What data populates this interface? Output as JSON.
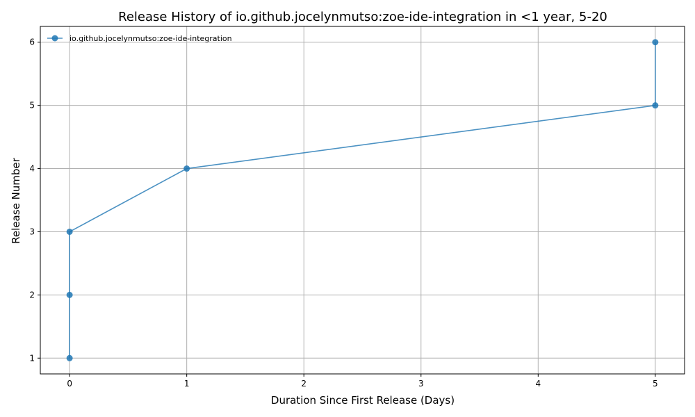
{
  "chart_data": {
    "type": "line",
    "title": "Release History of io.github.jocelynmutso:zoe-ide-integration in <1 year, 5-20",
    "xlabel": "Duration Since First Release (Days)",
    "ylabel": "Release Number",
    "xlim": [
      -0.25,
      5.25
    ],
    "ylim": [
      0.75,
      6.25
    ],
    "xticks": [
      0,
      1,
      2,
      3,
      4,
      5
    ],
    "yticks": [
      1,
      2,
      3,
      4,
      5,
      6
    ],
    "grid": true,
    "legend_position": "top-left",
    "series": [
      {
        "name": "io.github.jocelynmutso:zoe-ide-integration",
        "color": "#1f77b4",
        "x": [
          0,
          0,
          0,
          1,
          5,
          5
        ],
        "y": [
          1,
          2,
          3,
          4,
          5,
          6
        ]
      }
    ]
  }
}
